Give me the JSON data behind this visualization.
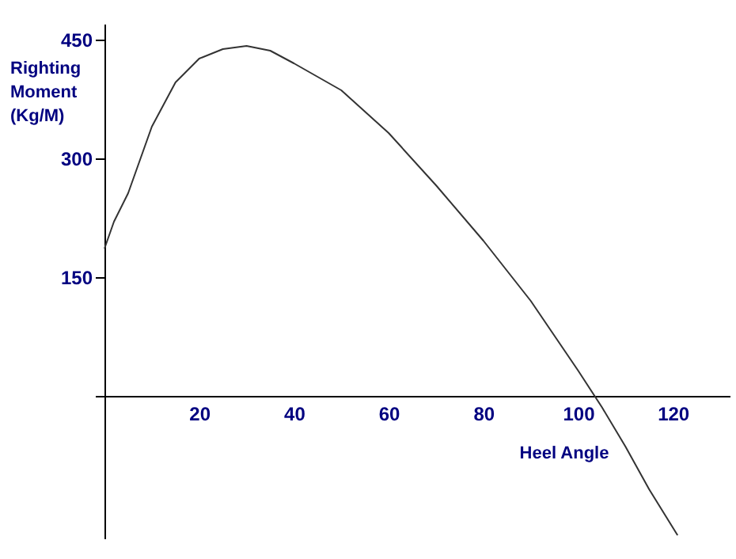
{
  "chart_data": {
    "type": "line",
    "xlabel": "Heel Angle",
    "ylabel": "Righting Moment (Kg/M)",
    "x": [
      0,
      2,
      5,
      10,
      15,
      20,
      25,
      30,
      35,
      40,
      50,
      60,
      70,
      80,
      90,
      100,
      105,
      110,
      115,
      121
    ],
    "series": [
      {
        "color": "#333333",
        "values": [
          186,
          220,
          256,
          340,
          396,
          426,
          438,
          442,
          436,
          420,
          386,
          332,
          266,
          196,
          120,
          32,
          -14,
          -64,
          -118,
          -176
        ]
      }
    ],
    "xlim": [
      0,
      132
    ],
    "ylim": [
      -180,
      470
    ],
    "xticks": [
      20,
      40,
      60,
      80,
      100,
      120
    ],
    "yticks": [
      {
        "value": 0,
        "label": null
      },
      150,
      300,
      450
    ],
    "grid": false,
    "marker": "none",
    "line_style": "solid"
  }
}
